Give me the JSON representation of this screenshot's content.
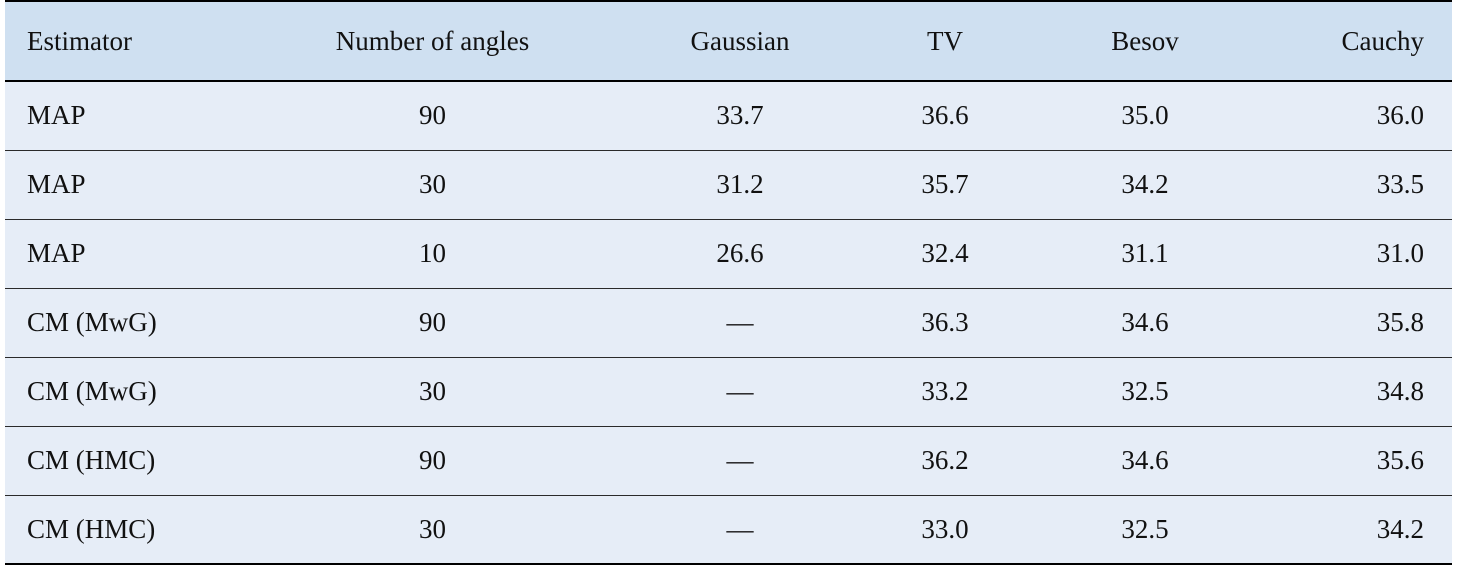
{
  "table": {
    "headers": [
      "Estimator",
      "Number of angles",
      "Gaussian",
      "TV",
      "Besov",
      "Cauchy"
    ],
    "rows": [
      [
        "MAP",
        "90",
        "33.7",
        "36.6",
        "35.0",
        "36.0"
      ],
      [
        "MAP",
        "30",
        "31.2",
        "35.7",
        "34.2",
        "33.5"
      ],
      [
        "MAP",
        "10",
        "26.6",
        "32.4",
        "31.1",
        "31.0"
      ],
      [
        "CM (MwG)",
        "90",
        "—",
        "36.3",
        "34.6",
        "35.8"
      ],
      [
        "CM (MwG)",
        "30",
        "—",
        "33.2",
        "32.5",
        "34.8"
      ],
      [
        "CM (HMC)",
        "90",
        "—",
        "36.2",
        "34.6",
        "35.6"
      ],
      [
        "CM (HMC)",
        "30",
        "—",
        "33.0",
        "32.5",
        "34.2"
      ]
    ]
  },
  "colors": {
    "header_bg": "#cfe0f1",
    "row_bg": "#e6edf7",
    "rule": "#000000"
  }
}
